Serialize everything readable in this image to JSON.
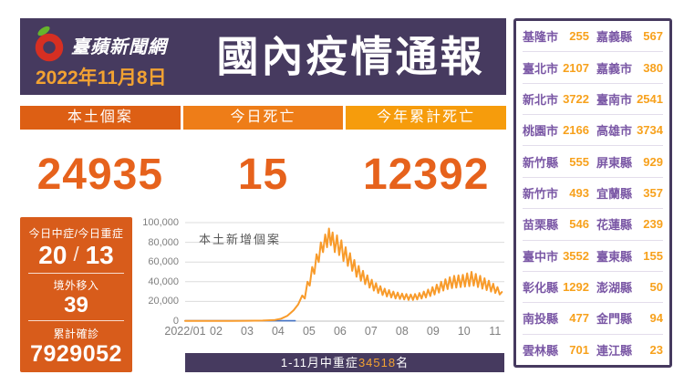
{
  "header": {
    "brand": "臺蘋新聞網",
    "date": "2022年11月8日",
    "title": "國內疫情通報"
  },
  "stats": [
    {
      "label": "本土個案",
      "value": "24935",
      "color": "#dd5f14"
    },
    {
      "label": "今日死亡",
      "value": "15",
      "color": "#ee7d18"
    },
    {
      "label": "今年累計死亡",
      "value": "12392",
      "color": "#f69c0c"
    }
  ],
  "side_panel": {
    "severity_label": "今日中症/今日重症",
    "moderate": "20",
    "slash": "/",
    "severe": "13",
    "imported_label": "境外移入",
    "imported": "39",
    "cumulative_label": "累計確診",
    "cumulative": "7929052"
  },
  "banner": {
    "prefix": "1-11月中重症",
    "count": "34518",
    "suffix": "名"
  },
  "chart_data": {
    "type": "line",
    "title": "本土新增個案",
    "xlim": [
      1,
      11.3
    ],
    "ylim": [
      0,
      100000
    ],
    "grid": true,
    "grid_color": "#dcdcdc",
    "axis_color": "#bfbfbf",
    "y_ticks": [
      {
        "v": 100000,
        "label": "100,000"
      },
      {
        "v": 80000,
        "label": "80,000"
      },
      {
        "v": 60000,
        "label": "60,000"
      },
      {
        "v": 40000,
        "label": "40,000"
      },
      {
        "v": 20000,
        "label": "20,000"
      },
      {
        "v": 0,
        "label": "0"
      }
    ],
    "x_ticks": [
      {
        "m": 1,
        "label": "2022/01"
      },
      {
        "m": 2,
        "label": "02"
      },
      {
        "m": 3,
        "label": "03"
      },
      {
        "m": 4,
        "label": "04"
      },
      {
        "m": 5,
        "label": "05"
      },
      {
        "m": 6,
        "label": "06"
      },
      {
        "m": 7,
        "label": "07"
      },
      {
        "m": 8,
        "label": "08"
      },
      {
        "m": 9,
        "label": "09"
      },
      {
        "m": 10,
        "label": "10"
      },
      {
        "m": 11,
        "label": "11"
      }
    ],
    "series": [
      {
        "name": "baseline-imported",
        "color": "#4472c4",
        "width": 1.6,
        "points": [
          [
            1,
            400
          ],
          [
            4.55,
            400
          ]
        ]
      },
      {
        "name": "local-new-cases",
        "color": "#f89b2b",
        "width": 2,
        "points": [
          [
            1,
            150
          ],
          [
            1.5,
            150
          ],
          [
            2,
            200
          ],
          [
            2.5,
            260
          ],
          [
            3,
            360
          ],
          [
            3.5,
            560
          ],
          [
            3.9,
            1200
          ],
          [
            4.1,
            2500
          ],
          [
            4.3,
            5500
          ],
          [
            4.5,
            11000
          ],
          [
            4.65,
            17000
          ],
          [
            4.78,
            26000
          ],
          [
            4.86,
            23000
          ],
          [
            4.95,
            40000
          ],
          [
            5.02,
            36000
          ],
          [
            5.1,
            55000
          ],
          [
            5.17,
            48000
          ],
          [
            5.24,
            68000
          ],
          [
            5.31,
            60000
          ],
          [
            5.38,
            80000
          ],
          [
            5.45,
            70000
          ],
          [
            5.52,
            88000
          ],
          [
            5.58,
            75000
          ],
          [
            5.64,
            94000
          ],
          [
            5.7,
            77000
          ],
          [
            5.76,
            90000
          ],
          [
            5.83,
            70000
          ],
          [
            5.9,
            87000
          ],
          [
            5.97,
            67000
          ],
          [
            6.04,
            82000
          ],
          [
            6.11,
            61000
          ],
          [
            6.18,
            75000
          ],
          [
            6.25,
            56000
          ],
          [
            6.32,
            69000
          ],
          [
            6.39,
            51000
          ],
          [
            6.46,
            62000
          ],
          [
            6.53,
            45000
          ],
          [
            6.6,
            56000
          ],
          [
            6.67,
            41000
          ],
          [
            6.74,
            51000
          ],
          [
            6.81,
            37500
          ],
          [
            6.88,
            46500
          ],
          [
            6.95,
            34000
          ],
          [
            7.02,
            42000
          ],
          [
            7.09,
            31000
          ],
          [
            7.16,
            38500
          ],
          [
            7.23,
            28500
          ],
          [
            7.3,
            35500
          ],
          [
            7.37,
            26500
          ],
          [
            7.44,
            33000
          ],
          [
            7.51,
            25000
          ],
          [
            7.58,
            31500
          ],
          [
            7.65,
            24000
          ],
          [
            7.72,
            30000
          ],
          [
            7.79,
            23000
          ],
          [
            7.86,
            29000
          ],
          [
            7.93,
            22500
          ],
          [
            8,
            28000
          ],
          [
            8.07,
            22000
          ],
          [
            8.14,
            27500
          ],
          [
            8.21,
            21500
          ],
          [
            8.28,
            27000
          ],
          [
            8.35,
            21500
          ],
          [
            8.42,
            27500
          ],
          [
            8.49,
            22000
          ],
          [
            8.56,
            28500
          ],
          [
            8.63,
            23000
          ],
          [
            8.7,
            30000
          ],
          [
            8.77,
            24000
          ],
          [
            8.84,
            32000
          ],
          [
            8.91,
            25500
          ],
          [
            8.98,
            34500
          ],
          [
            9.05,
            27000
          ],
          [
            9.12,
            37000
          ],
          [
            9.19,
            29000
          ],
          [
            9.26,
            40000
          ],
          [
            9.33,
            31000
          ],
          [
            9.4,
            42500
          ],
          [
            9.47,
            32500
          ],
          [
            9.54,
            44500
          ],
          [
            9.61,
            33500
          ],
          [
            9.68,
            46000
          ],
          [
            9.75,
            34000
          ],
          [
            9.82,
            46500
          ],
          [
            9.89,
            34500
          ],
          [
            9.96,
            47000
          ],
          [
            10.03,
            35000
          ],
          [
            10.1,
            48500
          ],
          [
            10.17,
            35500
          ],
          [
            10.24,
            50000
          ],
          [
            10.31,
            36000
          ],
          [
            10.38,
            48000
          ],
          [
            10.45,
            34500
          ],
          [
            10.52,
            46000
          ],
          [
            10.59,
            33000
          ],
          [
            10.66,
            43500
          ],
          [
            10.73,
            31500
          ],
          [
            10.8,
            41000
          ],
          [
            10.87,
            30000
          ],
          [
            10.94,
            38000
          ],
          [
            11.01,
            28500
          ],
          [
            11.08,
            34500
          ],
          [
            11.15,
            27000
          ],
          [
            11.22,
            29500
          ]
        ]
      }
    ]
  },
  "region_table": {
    "rows": [
      {
        "n1": "基隆市",
        "v1": "255",
        "n2": "嘉義縣",
        "v2": "567"
      },
      {
        "n1": "臺北市",
        "v1": "2107",
        "n2": "嘉義市",
        "v2": "380"
      },
      {
        "n1": "新北市",
        "v1": "3722",
        "n2": "臺南市",
        "v2": "2541"
      },
      {
        "n1": "桃園市",
        "v1": "2166",
        "n2": "高雄市",
        "v2": "3734"
      },
      {
        "n1": "新竹縣",
        "v1": "555",
        "n2": "屏東縣",
        "v2": "929"
      },
      {
        "n1": "新竹市",
        "v1": "493",
        "n2": "宜蘭縣",
        "v2": "357"
      },
      {
        "n1": "苗栗縣",
        "v1": "546",
        "n2": "花蓮縣",
        "v2": "239"
      },
      {
        "n1": "臺中市",
        "v1": "3552",
        "n2": "臺東縣",
        "v2": "155"
      },
      {
        "n1": "彰化縣",
        "v1": "1292",
        "n2": "澎湖縣",
        "v2": "50"
      },
      {
        "n1": "南投縣",
        "v1": "477",
        "n2": "金門縣",
        "v2": "94"
      },
      {
        "n1": "雲林縣",
        "v1": "701",
        "n2": "連江縣",
        "v2": "23"
      }
    ]
  }
}
